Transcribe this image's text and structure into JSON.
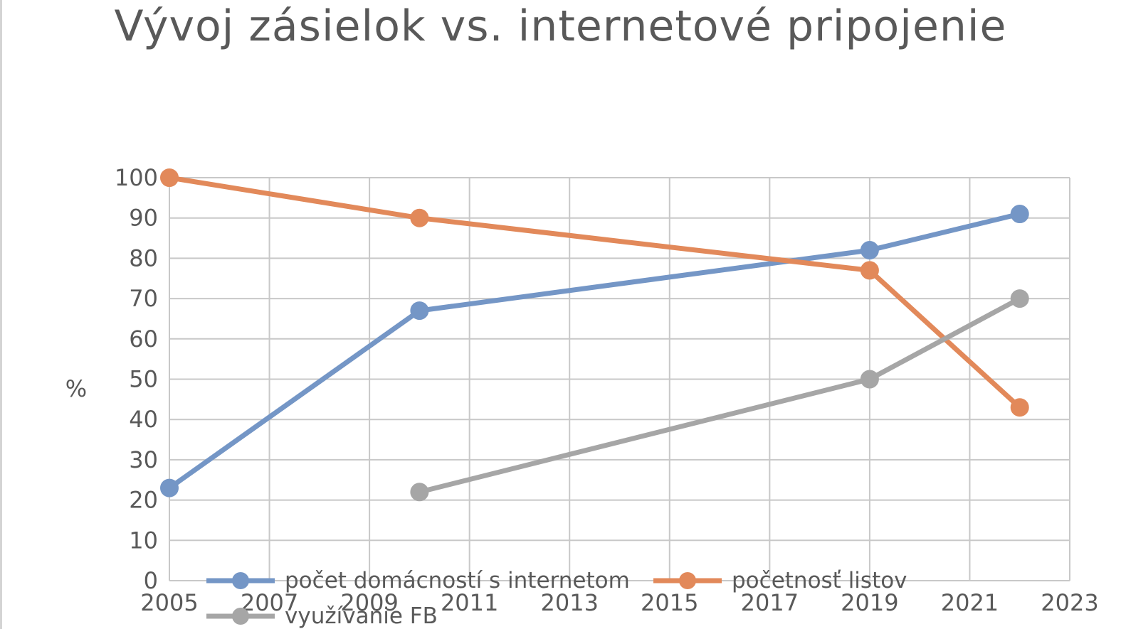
{
  "chart_data": {
    "type": "scatter",
    "title": "Vývoj zásielok vs. internetové pripojenie",
    "xlabel": "",
    "ylabel": "%",
    "xlim": [
      2005,
      2023
    ],
    "ylim": [
      0,
      100
    ],
    "x_ticks": [
      "2005",
      "2007",
      "2009",
      "2011",
      "2013",
      "2015",
      "2017",
      "2019",
      "2021",
      "2023"
    ],
    "y_ticks": [
      "0",
      "10",
      "20",
      "30",
      "40",
      "50",
      "60",
      "70",
      "80",
      "90",
      "100"
    ],
    "grid": true,
    "legend_position": "bottom",
    "series": [
      {
        "name": "počet domácností s internetom",
        "color": "#7496c6",
        "points": [
          {
            "x": 2005,
            "y": 23
          },
          {
            "x": 2010,
            "y": 67
          },
          {
            "x": 2019,
            "y": 82
          },
          {
            "x": 2022,
            "y": 91
          }
        ]
      },
      {
        "name": "početnosť listov",
        "color": "#e2895a",
        "points": [
          {
            "x": 2005,
            "y": 100
          },
          {
            "x": 2010,
            "y": 90
          },
          {
            "x": 2019,
            "y": 77
          },
          {
            "x": 2022,
            "y": 43
          }
        ]
      },
      {
        "name": "využívanie FB",
        "color": "#a6a6a6",
        "points": [
          {
            "x": 2010,
            "y": 22
          },
          {
            "x": 2019,
            "y": 50
          },
          {
            "x": 2022,
            "y": 70
          }
        ]
      }
    ]
  }
}
